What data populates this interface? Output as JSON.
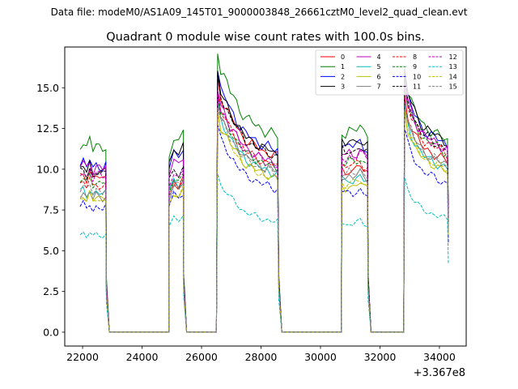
{
  "figure": {
    "suptitle": "Data file: modeM0/AS1A09_145T01_9000003848_26661cztM0_level2_quad_clean.evt"
  },
  "chart_data": {
    "type": "line",
    "title": "Quadrant 0 module wise count rates with 100.0s bins.",
    "xlabel": "",
    "ylabel": "",
    "x_offset_label": "+3.367e8",
    "xlim": [
      21400,
      34900
    ],
    "ylim": [
      -0.85,
      17.5
    ],
    "xticks": [
      22000,
      24000,
      26000,
      28000,
      30000,
      32000,
      34000
    ],
    "yticks": [
      0.0,
      2.5,
      5.0,
      7.5,
      10.0,
      12.5,
      15.0
    ],
    "ytick_labels": [
      "0.0",
      "2.5",
      "5.0",
      "7.5",
      "10.0",
      "12.5",
      "15.0"
    ],
    "x_segments": [
      [
        21900,
        22800
      ],
      [
        24900,
        25400
      ],
      [
        26500,
        28600
      ],
      [
        30700,
        31600
      ],
      [
        32800,
        34300
      ]
    ],
    "gap_value": 0,
    "segment_shapes": [
      {
        "start": 1.0,
        "body": [
          1.0,
          1.02,
          0.98,
          1.03,
          0.97,
          1.0,
          0.99,
          0.98,
          1.0
        ],
        "end": 1.0
      },
      {
        "start": 0.9,
        "body": [
          0.92,
          1.0,
          0.97,
          1.02
        ],
        "end": 1.0
      },
      {
        "start": 1.0,
        "body": [
          1.3,
          1.2,
          1.17,
          1.14,
          1.1,
          1.08,
          1.05,
          1.02,
          1.0,
          0.98,
          0.97,
          0.96,
          0.95,
          0.94,
          0.93,
          0.92,
          0.92,
          0.91,
          0.9,
          0.9
        ],
        "end": 0.88
      },
      {
        "start": 1.0,
        "body": [
          1.0,
          0.98,
          1.0,
          0.99,
          1.0,
          1.02,
          0.99,
          0.98
        ],
        "end": 1.0
      },
      {
        "start": 1.0,
        "body": [
          1.25,
          1.15,
          1.1,
          1.06,
          1.03,
          1.0,
          0.98,
          0.97,
          0.96,
          0.95,
          0.94,
          0.93,
          0.92,
          0.91
        ],
        "end": 0.85
      }
    ],
    "series": [
      {
        "name": "0",
        "color": "#ff0000",
        "dash": "solid",
        "levels": [
          9.6,
          9.4,
          12.0,
          10.0,
          11.5
        ]
      },
      {
        "name": "1",
        "color": "#008000",
        "dash": "solid",
        "levels": [
          11.5,
          12.0,
          13.4,
          12.4,
          12.9
        ]
      },
      {
        "name": "2",
        "color": "#0000ff",
        "dash": "solid",
        "levels": [
          10.3,
          11.0,
          12.4,
          11.5,
          12.6
        ]
      },
      {
        "name": "3",
        "color": "#000000",
        "dash": "solid",
        "levels": [
          10.0,
          11.2,
          12.2,
          11.7,
          12.8
        ]
      },
      {
        "name": "4",
        "color": "#bf00bf",
        "dash": "solid",
        "levels": [
          10.2,
          10.5,
          11.5,
          11.0,
          12.3
        ]
      },
      {
        "name": "5",
        "color": "#00bfbf",
        "dash": "solid",
        "levels": [
          8.6,
          9.3,
          10.8,
          9.4,
          11.0
        ]
      },
      {
        "name": "6",
        "color": "#bfbf00",
        "dash": "solid",
        "levels": [
          8.3,
          8.6,
          10.5,
          9.0,
          10.8
        ]
      },
      {
        "name": "7",
        "color": "#808080",
        "dash": "solid",
        "levels": [
          8.4,
          9.0,
          11.0,
          9.6,
          11.2
        ]
      },
      {
        "name": "8",
        "color": "#ff0000",
        "dash": "dashed",
        "levels": [
          9.1,
          9.1,
          11.3,
          10.3,
          12.0
        ]
      },
      {
        "name": "9",
        "color": "#008000",
        "dash": "dashed",
        "levels": [
          9.3,
          9.4,
          11.2,
          10.5,
          12.1
        ]
      },
      {
        "name": "10",
        "color": "#0000ff",
        "dash": "dashed",
        "levels": [
          7.7,
          8.4,
          9.8,
          8.6,
          10.0
        ]
      },
      {
        "name": "11",
        "color": "#000000",
        "dash": "dashed",
        "levels": [
          9.8,
          10.0,
          12.0,
          11.2,
          12.3
        ]
      },
      {
        "name": "12",
        "color": "#bf00bf",
        "dash": "dashed",
        "levels": [
          9.7,
          9.8,
          11.4,
          10.8,
          12.2
        ]
      },
      {
        "name": "13",
        "color": "#00bfbf",
        "dash": "dashed",
        "levels": [
          6.0,
          7.1,
          7.5,
          6.7,
          7.6
        ]
      },
      {
        "name": "14",
        "color": "#bfbf00",
        "dash": "dashed",
        "levels": [
          8.2,
          8.6,
          10.4,
          9.2,
          10.9
        ]
      },
      {
        "name": "15",
        "color": "#808080",
        "dash": "dashed",
        "levels": [
          8.8,
          9.2,
          10.8,
          9.8,
          11.2
        ]
      }
    ],
    "legend": {
      "location": "top-right",
      "columns": 4
    }
  }
}
